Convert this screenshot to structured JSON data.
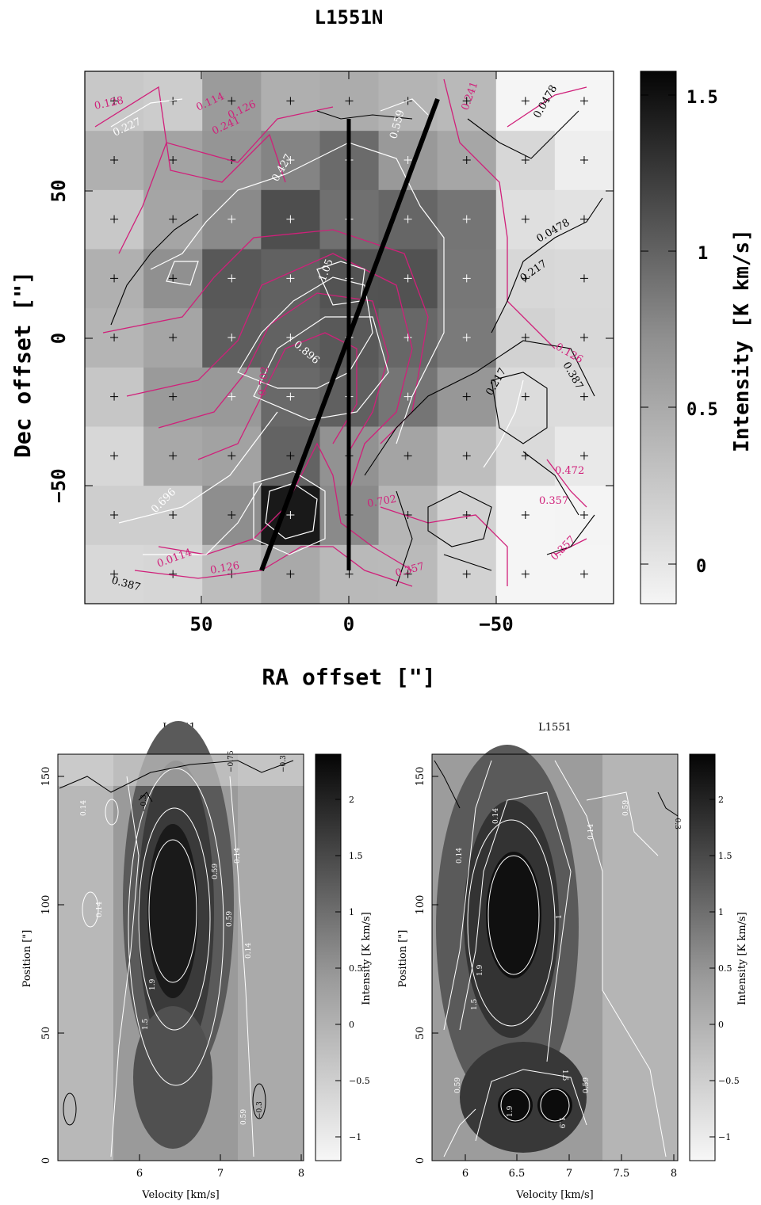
{
  "top_panel": {
    "title": "L1551N",
    "xlabel": "RA offset  [\"]",
    "ylabel": "Dec offset  [\"]",
    "colorbar_label": "Intensity [K km/s]",
    "x_ticks": [
      "50",
      "0",
      "−50"
    ],
    "y_ticks": [
      "50",
      "0",
      "−50"
    ],
    "colorbar_ticks": [
      "1.5",
      "1",
      "0.5",
      "0"
    ],
    "contour_labels_magenta": [
      "0.128",
      "0.241",
      "0.114",
      "0.126",
      "0.241",
      "0.702",
      "0.357",
      "0.472",
      "0.357",
      "0.126",
      "0.0114",
      "0.126",
      "0.357",
      "0.702"
    ],
    "contour_labels_white": [
      "0.227",
      "0.427",
      "1.05",
      "0.896",
      "0.696",
      "0.559"
    ],
    "contour_labels_black": [
      "0.0478",
      "0.217",
      "0.387",
      "0.0478",
      "0.217",
      "0.387"
    ]
  },
  "bottom_left": {
    "title": "L1551",
    "xlabel": "Velocity  [km/s]",
    "ylabel": "Position [\"]",
    "colorbar_label": "Intensity [K km/s]",
    "x_ticks": [
      "6",
      "7",
      "8"
    ],
    "y_ticks": [
      "0",
      "50",
      "100",
      "150"
    ],
    "colorbar_ticks": [
      "2",
      "1.5",
      "1",
      "0.5",
      "0",
      "−0.5",
      "−1"
    ],
    "contour_labels": [
      "0.14",
      "0.14",
      "0.59",
      "1.5",
      "1.9",
      "0.14",
      "0.59",
      "0.14",
      "−0.3",
      "0.59",
      "−0.3",
      "−0.75",
      "−0.3"
    ]
  },
  "bottom_right": {
    "title": "L1551",
    "xlabel": "Velocity  [km/s]",
    "ylabel": "Position [\"]",
    "colorbar_label": "Intensity [K km/s]",
    "x_ticks": [
      "6",
      "6.5",
      "7",
      "7.5",
      "8"
    ],
    "y_ticks": [
      "0",
      "50",
      "100",
      "150"
    ],
    "colorbar_ticks": [
      "2",
      "1.5",
      "1",
      "0.5",
      "0",
      "−0.5",
      "−1"
    ],
    "contour_labels": [
      "0.14",
      "0.14",
      "0.59",
      "1",
      "1.5",
      "1.9",
      "1.9",
      "1.9",
      "1.5",
      "0.59",
      "0.59",
      "0.14",
      "−0.3"
    ]
  },
  "chart_data": [
    {
      "type": "heatmap",
      "title": "L1551N",
      "xlabel": "RA offset  [\"]",
      "ylabel": "Dec offset  [\"]",
      "colorbar_label": "Intensity [K km/s]",
      "x_range": [
        90,
        -90
      ],
      "y_range": [
        -90,
        90
      ],
      "colorbar_range": [
        -0.1,
        1.6
      ],
      "grid_step": 20,
      "peak": {
        "x": 20,
        "y": -60,
        "value": 1.6
      },
      "cuts": [
        {
          "from": [
            0,
            80
          ],
          "to": [
            0,
            -80
          ]
        },
        {
          "from": [
            -30,
            80
          ],
          "to": [
            30,
            -80
          ]
        }
      ]
    },
    {
      "type": "heatmap",
      "title": "L1551",
      "xlabel": "Velocity  [km/s]",
      "ylabel": "Position [\"]",
      "x_range": [
        5.0,
        8.0
      ],
      "y_range": [
        0,
        165
      ],
      "colorbar_range": [
        -1.2,
        2.4
      ],
      "peak": {
        "x": 6.4,
        "y": 90,
        "value": 2.3
      }
    },
    {
      "type": "heatmap",
      "title": "L1551",
      "xlabel": "Velocity  [km/s]",
      "ylabel": "Position [\"]",
      "x_range": [
        5.7,
        8.0
      ],
      "y_range": [
        0,
        165
      ],
      "colorbar_range": [
        -1.2,
        2.4
      ],
      "peak": {
        "x": 6.5,
        "y": 95,
        "value": 2.3
      }
    }
  ]
}
